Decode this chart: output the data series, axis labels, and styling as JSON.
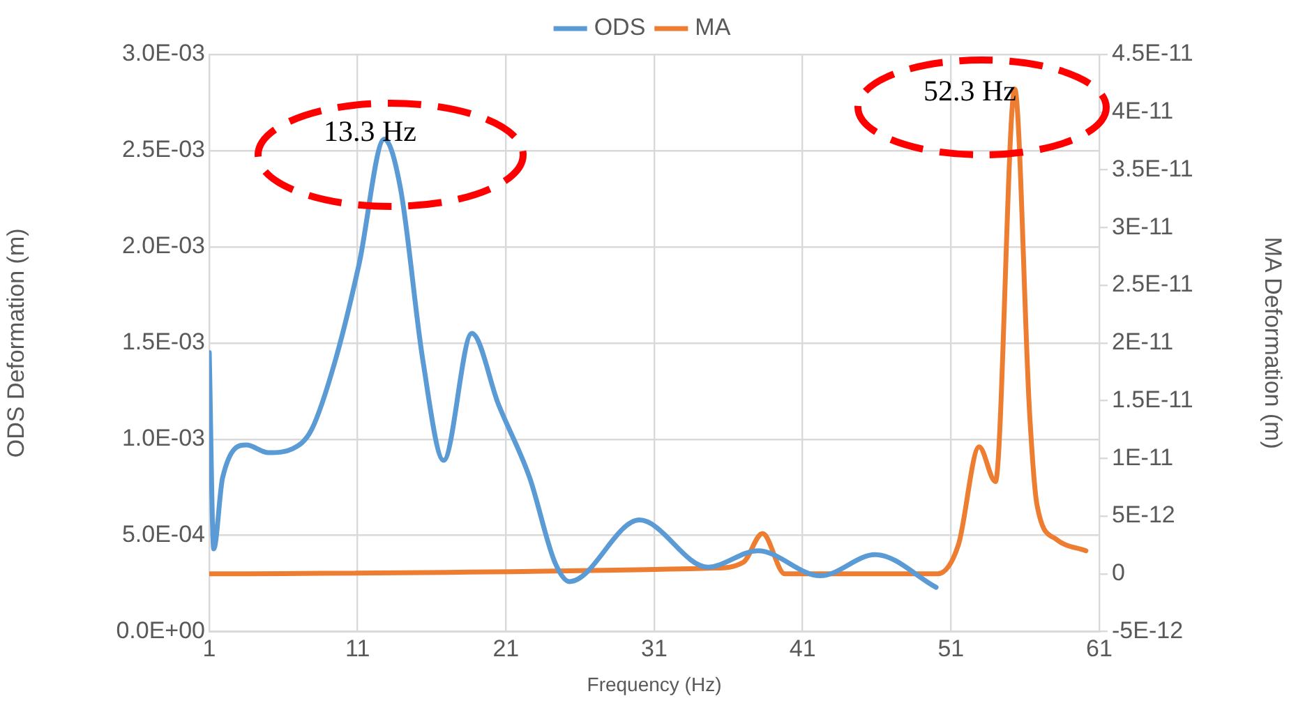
{
  "chart_data": {
    "type": "line",
    "xlabel": "Frequency (Hz)",
    "ylabel": "ODS Deformation (m)",
    "y2label": "MA Deformation (m)",
    "xlim": [
      1,
      61
    ],
    "xticks": [
      1,
      11,
      21,
      31,
      41,
      51,
      61
    ],
    "ylim": [
      0,
      0.003
    ],
    "yticks": [
      {
        "value": 0,
        "label": "0.0E+00"
      },
      {
        "value": 0.0005,
        "label": "5.0E-04"
      },
      {
        "value": 0.001,
        "label": "1.0E-03"
      },
      {
        "value": 0.0015,
        "label": "1.5E-03"
      },
      {
        "value": 0.002,
        "label": "2.0E-03"
      },
      {
        "value": 0.0025,
        "label": "2.5E-03"
      },
      {
        "value": 0.003,
        "label": "3.0E-03"
      }
    ],
    "y2lim": [
      -5e-12,
      4.5e-11
    ],
    "y2ticks": [
      {
        "value": -5e-12,
        "label": "-5E-12"
      },
      0,
      {
        "value": 5e-12,
        "label": "5E-12"
      },
      {
        "value": 1e-11,
        "label": "1E-11"
      },
      {
        "value": 1.5e-11,
        "label": "1.5E-11"
      },
      {
        "value": 2e-11,
        "label": "2E-11"
      },
      {
        "value": 2.5e-11,
        "label": "2.5E-11"
      },
      {
        "value": 3e-11,
        "label": "3E-11"
      },
      {
        "value": 3.5e-11,
        "label": "3.5E-11"
      },
      {
        "value": 4e-11,
        "label": "4E-11"
      },
      {
        "value": 4.5e-11,
        "label": "4.5E-11"
      }
    ],
    "grid": true,
    "legend": "top",
    "marker": "none",
    "line_style": "solid",
    "annotations": [
      "13.3 Hz",
      "52.3 Hz"
    ],
    "series": [
      {
        "name": "ODS",
        "color": "#5b9bd5",
        "x": [
          1,
          1.3,
          1.9,
          3.5,
          5,
          6.6,
          7.9,
          9.5,
          11.1,
          12.8,
          13.9,
          15.4,
          16.8,
          18.7,
          20.5,
          22.6,
          24.3,
          25.3,
          30,
          34.6,
          38,
          42.2,
          45.9,
          50
        ],
        "values": [
          0.00145,
          0.00043,
          0.0008,
          0.00097,
          0.00093,
          0.00095,
          0.00105,
          0.00141,
          0.00191,
          0.00256,
          0.0023,
          0.00141,
          0.00089,
          0.00155,
          0.00118,
          0.0008,
          0.00036,
          0.00026,
          0.00058,
          0.000335,
          0.00042,
          0.00029,
          0.0004,
          0.00023
        ]
      },
      {
        "name": "MA",
        "color": "#ed7d31",
        "axis": "y2",
        "x": [
          1,
          35,
          37,
          38.3,
          39.8,
          50.1,
          51.5,
          52.9,
          54,
          55.3,
          56.3,
          56.8,
          58.1,
          60.1
        ],
        "values": [
          0,
          5e-13,
          1e-12,
          3.5e-12,
          0,
          0,
          2.5e-12,
          1.1e-11,
          8e-12,
          4.2e-11,
          1.4e-11,
          6e-12,
          3e-12,
          2e-12
        ]
      }
    ]
  }
}
